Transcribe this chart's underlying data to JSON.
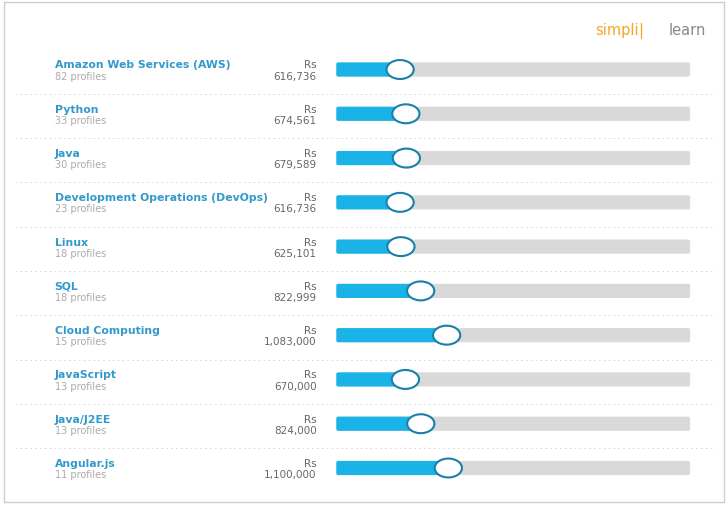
{
  "background_color": "#ffffff",
  "border_color": "#cccccc",
  "skills": [
    {
      "name": "Amazon Web Services (AWS)",
      "profiles": "82 profiles",
      "salary": 616736
    },
    {
      "name": "Python",
      "profiles": "33 profiles",
      "salary": 674561
    },
    {
      "name": "Java",
      "profiles": "30 profiles",
      "salary": 679589
    },
    {
      "name": "Development Operations (DevOps)",
      "profiles": "23 profiles",
      "salary": 616736
    },
    {
      "name": "Linux",
      "profiles": "18 profiles",
      "salary": 625101
    },
    {
      "name": "SQL",
      "profiles": "18 profiles",
      "salary": 822999
    },
    {
      "name": "Cloud Computing",
      "profiles": "15 profiles",
      "salary": 1083000
    },
    {
      "name": "JavaScript",
      "profiles": "13 profiles",
      "salary": 670000
    },
    {
      "name": "Java/J2EE",
      "profiles": "13 profiles",
      "salary": 824000
    },
    {
      "name": "Angular.js",
      "profiles": "11 profiles",
      "salary": 1100000
    }
  ],
  "bar_max": 3500000,
  "bar_bg_color": "#d9d9d9",
  "bar_fill_color": "#1ab3e8",
  "dot_color": "#ffffff",
  "dot_edge_color": "#1a7faa",
  "name_color": "#3399cc",
  "profiles_color": "#aaaaaa",
  "salary_color": "#666666",
  "simpli_color": "#f5a623",
  "learn_color": "#888888",
  "divider_color": "#dddddd"
}
